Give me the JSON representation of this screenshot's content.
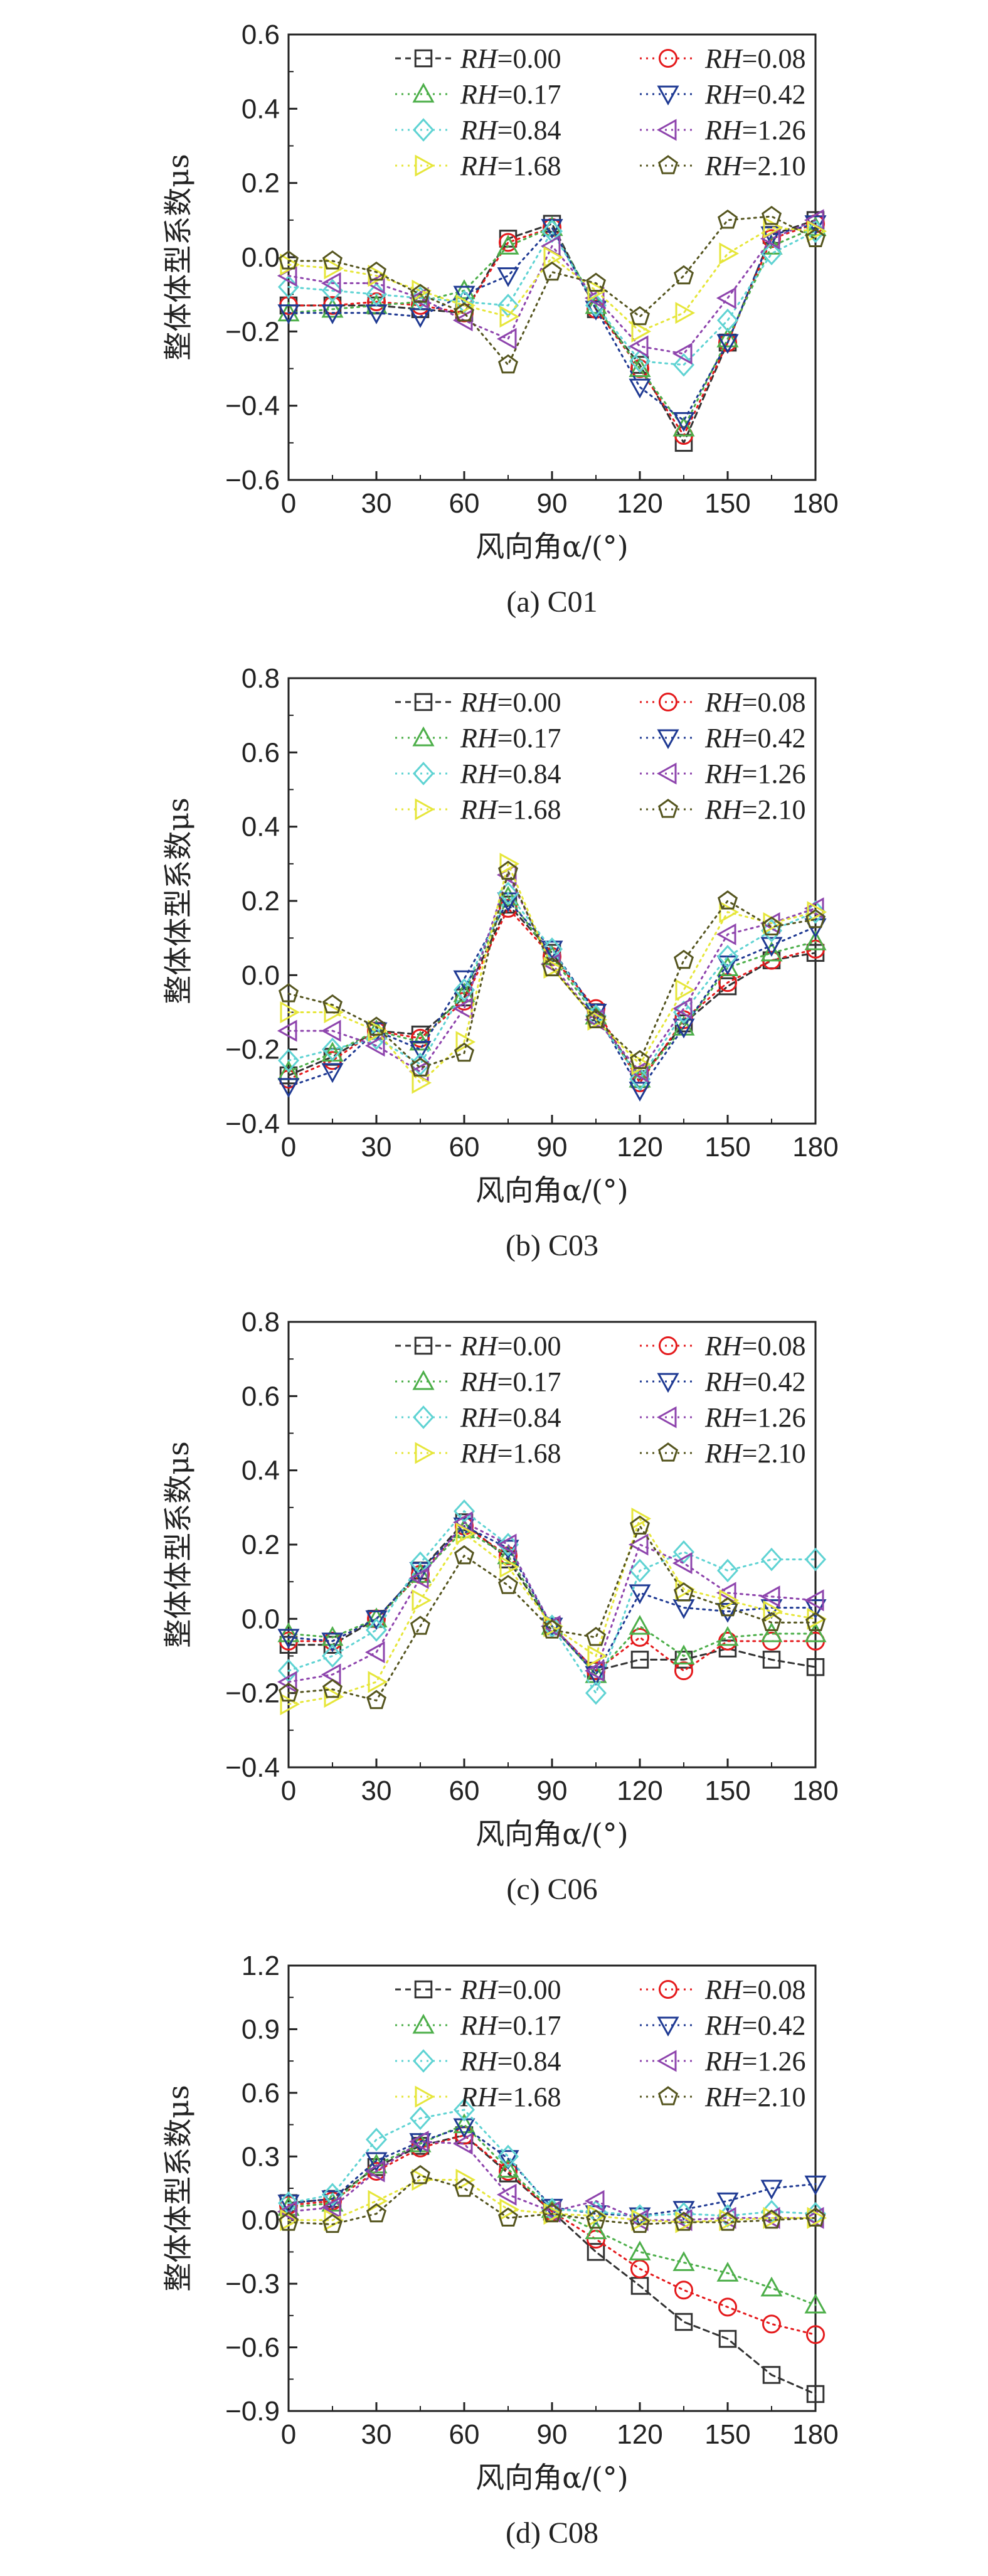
{
  "chart_data": [
    {
      "type": "line",
      "caption": "(a) C01",
      "xlabel": "风向角α/(°)",
      "ylabel": "整体体型系数μs",
      "xlim": [
        0,
        180
      ],
      "ylim": [
        -0.6,
        0.6
      ],
      "x_ticks": [
        0,
        30,
        60,
        90,
        120,
        150,
        180
      ],
      "y_ticks": [
        -0.6,
        -0.4,
        -0.2,
        0.0,
        0.2,
        0.4,
        0.6
      ],
      "y_tick_labels": [
        "−0.6",
        "−0.4",
        "−0.2",
        "0.0",
        "0.2",
        "0.4",
        "0.6"
      ],
      "x": [
        0,
        15,
        30,
        45,
        60,
        75,
        90,
        105,
        120,
        135,
        150,
        165,
        180
      ],
      "series": [
        {
          "name": "RH=0.00",
          "values": [
            -0.13,
            -0.13,
            -0.13,
            -0.14,
            -0.15,
            0.05,
            0.09,
            -0.14,
            -0.29,
            -0.5,
            -0.23,
            0.06,
            0.1
          ]
        },
        {
          "name": "RH=0.08",
          "values": [
            -0.13,
            -0.13,
            -0.12,
            -0.13,
            -0.15,
            0.04,
            0.08,
            -0.14,
            -0.3,
            -0.48,
            -0.23,
            0.05,
            0.09
          ]
        },
        {
          "name": "RH=0.17",
          "values": [
            -0.15,
            -0.14,
            -0.13,
            -0.12,
            -0.09,
            0.03,
            0.08,
            -0.13,
            -0.3,
            -0.46,
            -0.22,
            0.03,
            0.08
          ]
        },
        {
          "name": "RH=0.42",
          "values": [
            -0.15,
            -0.15,
            -0.15,
            -0.16,
            -0.1,
            -0.05,
            0.08,
            -0.14,
            -0.35,
            -0.44,
            -0.23,
            0.06,
            0.09
          ]
        },
        {
          "name": "RH=0.84",
          "values": [
            -0.08,
            -0.09,
            -0.1,
            -0.11,
            -0.12,
            -0.13,
            0.07,
            -0.13,
            -0.28,
            -0.29,
            -0.17,
            0.01,
            0.07
          ]
        },
        {
          "name": "RH=1.26",
          "values": [
            -0.05,
            -0.07,
            -0.07,
            -0.11,
            -0.17,
            -0.22,
            0.03,
            -0.11,
            -0.24,
            -0.26,
            -0.11,
            0.05,
            0.1
          ]
        },
        {
          "name": "RH=1.68",
          "values": [
            -0.02,
            -0.03,
            -0.05,
            -0.09,
            -0.13,
            -0.16,
            0.0,
            -0.09,
            -0.2,
            -0.15,
            0.01,
            0.08,
            0.07
          ]
        },
        {
          "name": "RH=2.10",
          "values": [
            -0.01,
            -0.01,
            -0.04,
            -0.1,
            -0.15,
            -0.29,
            -0.04,
            -0.07,
            -0.16,
            -0.05,
            0.1,
            0.11,
            0.05
          ]
        }
      ]
    },
    {
      "type": "line",
      "caption": "(b) C03",
      "xlabel": "风向角α/(°)",
      "ylabel": "整体体型系数μs",
      "xlim": [
        0,
        180
      ],
      "ylim": [
        -0.4,
        0.8
      ],
      "x_ticks": [
        0,
        30,
        60,
        90,
        120,
        150,
        180
      ],
      "y_ticks": [
        -0.4,
        -0.2,
        0.0,
        0.2,
        0.4,
        0.6,
        0.8
      ],
      "y_tick_labels": [
        "−0.4",
        "−0.2",
        "0.0",
        "0.2",
        "0.4",
        "0.6",
        "0.8"
      ],
      "x": [
        0,
        15,
        30,
        45,
        60,
        75,
        90,
        105,
        120,
        135,
        150,
        165,
        180
      ],
      "series": [
        {
          "name": "RH=0.00",
          "values": [
            -0.27,
            -0.22,
            -0.15,
            -0.16,
            -0.06,
            0.19,
            0.06,
            -0.1,
            -0.28,
            -0.13,
            -0.03,
            0.04,
            0.06
          ]
        },
        {
          "name": "RH=0.08",
          "values": [
            -0.28,
            -0.23,
            -0.15,
            -0.17,
            -0.07,
            0.18,
            0.05,
            -0.09,
            -0.29,
            -0.12,
            -0.02,
            0.04,
            0.07
          ]
        },
        {
          "name": "RH=0.17",
          "values": [
            -0.26,
            -0.21,
            -0.15,
            -0.18,
            -0.05,
            0.21,
            0.05,
            -0.11,
            -0.28,
            -0.14,
            0.02,
            0.06,
            0.09
          ]
        },
        {
          "name": "RH=0.42",
          "values": [
            -0.3,
            -0.26,
            -0.15,
            -0.2,
            -0.01,
            0.2,
            0.07,
            -0.1,
            -0.31,
            -0.14,
            0.03,
            0.08,
            0.13
          ]
        },
        {
          "name": "RH=0.84",
          "values": [
            -0.23,
            -0.2,
            -0.17,
            -0.24,
            -0.04,
            0.22,
            0.07,
            -0.11,
            -0.28,
            -0.1,
            0.05,
            0.12,
            0.17
          ]
        },
        {
          "name": "RH=1.26",
          "values": [
            -0.15,
            -0.15,
            -0.19,
            -0.26,
            -0.09,
            0.27,
            0.03,
            -0.12,
            -0.26,
            -0.09,
            0.11,
            0.14,
            0.18
          ]
        },
        {
          "name": "RH=1.68",
          "values": [
            -0.1,
            -0.1,
            -0.15,
            -0.29,
            -0.18,
            0.3,
            0.02,
            -0.12,
            -0.24,
            -0.04,
            0.17,
            0.14,
            0.17
          ]
        },
        {
          "name": "RH=2.10",
          "values": [
            -0.05,
            -0.08,
            -0.14,
            -0.25,
            -0.21,
            0.28,
            0.02,
            -0.12,
            -0.23,
            0.04,
            0.2,
            0.13,
            0.15
          ]
        }
      ]
    },
    {
      "type": "line",
      "caption": "(c) C06",
      "xlabel": "风向角α/(°)",
      "ylabel": "整体体型系数μs",
      "xlim": [
        0,
        180
      ],
      "ylim": [
        -0.4,
        0.8
      ],
      "x_ticks": [
        0,
        30,
        60,
        90,
        120,
        150,
        180
      ],
      "y_ticks": [
        -0.4,
        -0.2,
        0.0,
        0.2,
        0.4,
        0.6,
        0.8
      ],
      "y_tick_labels": [
        "−0.4",
        "−0.2",
        "0.0",
        "0.2",
        "0.4",
        "0.6",
        "0.8"
      ],
      "x": [
        0,
        15,
        30,
        45,
        60,
        75,
        90,
        105,
        120,
        135,
        150,
        165,
        180
      ],
      "series": [
        {
          "name": "RH=0.00",
          "values": [
            -0.07,
            -0.07,
            0.0,
            0.13,
            0.26,
            0.16,
            -0.02,
            -0.14,
            -0.11,
            -0.11,
            -0.08,
            -0.11,
            -0.13
          ]
        },
        {
          "name": "RH=0.08",
          "values": [
            -0.06,
            -0.06,
            0.0,
            0.12,
            0.25,
            0.17,
            -0.02,
            -0.14,
            -0.05,
            -0.14,
            -0.06,
            -0.06,
            -0.06
          ]
        },
        {
          "name": "RH=0.17",
          "values": [
            -0.04,
            -0.05,
            0.0,
            0.12,
            0.24,
            0.17,
            -0.02,
            -0.15,
            -0.02,
            -0.1,
            -0.05,
            -0.04,
            -0.04
          ]
        },
        {
          "name": "RH=0.42",
          "values": [
            -0.05,
            -0.06,
            0.0,
            0.13,
            0.25,
            0.19,
            -0.02,
            -0.15,
            0.07,
            0.03,
            0.02,
            0.03,
            0.03
          ]
        },
        {
          "name": "RH=0.84",
          "values": [
            -0.14,
            -0.1,
            -0.03,
            0.15,
            0.29,
            0.2,
            -0.02,
            -0.2,
            0.13,
            0.18,
            0.13,
            0.16,
            0.16
          ]
        },
        {
          "name": "RH=1.26",
          "values": [
            -0.17,
            -0.15,
            -0.09,
            0.11,
            0.26,
            0.2,
            -0.02,
            -0.14,
            0.2,
            0.15,
            0.07,
            0.06,
            0.05
          ]
        },
        {
          "name": "RH=1.68",
          "values": [
            -0.23,
            -0.21,
            -0.17,
            0.05,
            0.23,
            0.14,
            -0.02,
            -0.1,
            0.27,
            0.08,
            0.05,
            0.02,
            0.0
          ]
        },
        {
          "name": "RH=2.10",
          "values": [
            -0.2,
            -0.19,
            -0.22,
            -0.02,
            0.17,
            0.09,
            -0.03,
            -0.05,
            0.25,
            0.07,
            0.03,
            -0.01,
            -0.01
          ]
        }
      ]
    },
    {
      "type": "line",
      "caption": "(d) C08",
      "xlabel": "风向角α/(°)",
      "ylabel": "整体体型系数μs",
      "xlim": [
        0,
        180
      ],
      "ylim": [
        -0.9,
        1.2
      ],
      "x_ticks": [
        0,
        30,
        60,
        90,
        120,
        150,
        180
      ],
      "y_ticks": [
        -0.9,
        -0.6,
        -0.3,
        0.0,
        0.3,
        0.6,
        0.9,
        1.2
      ],
      "y_tick_labels": [
        "−0.9",
        "−0.6",
        "−0.3",
        "0.0",
        "0.3",
        "0.6",
        "0.9",
        "1.2"
      ],
      "x": [
        0,
        15,
        30,
        45,
        60,
        75,
        90,
        105,
        120,
        135,
        150,
        165,
        180
      ],
      "series": [
        {
          "name": "RH=0.00",
          "values": [
            0.08,
            0.1,
            0.25,
            0.35,
            0.4,
            0.22,
            0.04,
            -0.15,
            -0.31,
            -0.48,
            -0.56,
            -0.73,
            -0.82
          ]
        },
        {
          "name": "RH=0.08",
          "values": [
            0.07,
            0.09,
            0.23,
            0.34,
            0.4,
            0.23,
            0.04,
            -0.09,
            -0.23,
            -0.33,
            -0.41,
            -0.49,
            -0.54
          ]
        },
        {
          "name": "RH=0.17",
          "values": [
            0.06,
            0.08,
            0.26,
            0.36,
            0.45,
            0.24,
            0.05,
            -0.05,
            -0.15,
            -0.2,
            -0.25,
            -0.32,
            -0.4
          ]
        },
        {
          "name": "RH=0.42",
          "values": [
            0.08,
            0.1,
            0.28,
            0.37,
            0.44,
            0.29,
            0.06,
            0.03,
            0.02,
            0.05,
            0.09,
            0.15,
            0.17
          ]
        },
        {
          "name": "RH=0.84",
          "values": [
            0.08,
            0.12,
            0.38,
            0.48,
            0.52,
            0.3,
            0.05,
            0.04,
            0.02,
            0.03,
            0.02,
            0.04,
            0.03
          ]
        },
        {
          "name": "RH=1.26",
          "values": [
            0.04,
            0.06,
            0.23,
            0.37,
            0.36,
            0.12,
            0.04,
            0.09,
            0.0,
            0.0,
            0.01,
            0.01,
            0.01
          ]
        },
        {
          "name": "RH=1.68",
          "values": [
            0.0,
            0.0,
            0.09,
            0.19,
            0.19,
            0.05,
            0.03,
            0.02,
            0.0,
            -0.01,
            0.0,
            0.01,
            0.01
          ]
        },
        {
          "name": "RH=2.10",
          "values": [
            -0.01,
            -0.02,
            0.03,
            0.21,
            0.15,
            0.01,
            0.03,
            0.0,
            -0.02,
            -0.01,
            -0.01,
            0.0,
            0.01
          ]
        }
      ]
    }
  ],
  "series_style": [
    {
      "color": "#333333",
      "marker": "square",
      "dash": "dashed"
    },
    {
      "color": "#e41a1c",
      "marker": "circle",
      "dash": "dotted"
    },
    {
      "color": "#4daf4a",
      "marker": "triangle-up",
      "dash": "dotted"
    },
    {
      "color": "#1f3a93",
      "marker": "triangle-down",
      "dash": "dotted"
    },
    {
      "color": "#5fd3d3",
      "marker": "diamond",
      "dash": "dotted"
    },
    {
      "color": "#8e44ad",
      "marker": "triangle-left",
      "dash": "dotted"
    },
    {
      "color": "#e6e63a",
      "marker": "triangle-right",
      "dash": "dotted"
    },
    {
      "color": "#55551f",
      "marker": "pentagon",
      "dash": "dotted"
    }
  ]
}
